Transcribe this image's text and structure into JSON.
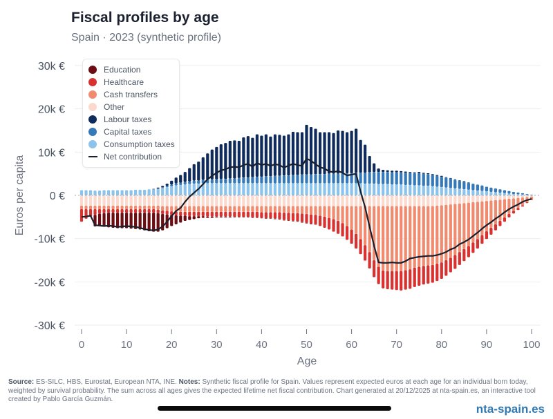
{
  "header": {
    "title": "Fiscal profiles by age",
    "subtitle": "Spain · 2023 (synthetic profile)"
  },
  "footer": {
    "source_label": "Source:",
    "source_text": " ES-SILC, HBS, Eurostat, European NTA, INE. ",
    "notes_label": "Notes:",
    "notes_text": " Synthetic fiscal profile for Spain. Values represent expected euros at each age for an individual born today, weighted by survival probability. The sum across all ages gives the expected lifetime net fiscal contribution. Chart generated at 20/12/2025 at nta-spain.es, an interactive tool created by Pablo García Guzmán.",
    "brand": "nta-spain.es"
  },
  "chart_data": {
    "type": "bar",
    "stacked": true,
    "title": "Fiscal profiles by age",
    "subtitle": "Spain · 2023 (synthetic profile)",
    "xlabel": "Age",
    "ylabel": "Euros per capita",
    "xlim": [
      0,
      100
    ],
    "ylim": [
      -30000,
      30000
    ],
    "xticks": [
      0,
      10,
      20,
      30,
      40,
      50,
      60,
      70,
      80,
      90,
      100
    ],
    "yticks": [
      {
        "value": 30000,
        "label": "30k €"
      },
      {
        "value": 20000,
        "label": "20k €"
      },
      {
        "value": 10000,
        "label": "10k €"
      },
      {
        "value": 0,
        "label": "0 €"
      },
      {
        "value": -10000,
        "label": "-10k €"
      },
      {
        "value": -20000,
        "label": "-20k €"
      },
      {
        "value": -30000,
        "label": "-30k €"
      }
    ],
    "grid": true,
    "legend_position": "top-left",
    "units": "euros (thousands in series values)",
    "colors": {
      "education": "#6b0d12",
      "healthcare": "#d7322f",
      "cash": "#f08b70",
      "other": "#fbd9cc",
      "labour": "#0f2b5b",
      "capital": "#3579b8",
      "consumption": "#8cc3ea",
      "net": "#1a1f2e"
    },
    "legend": [
      {
        "key": "education",
        "label": "Education",
        "kind": "dot"
      },
      {
        "key": "healthcare",
        "label": "Healthcare",
        "kind": "dot"
      },
      {
        "key": "cash",
        "label": "Cash transfers",
        "kind": "dot"
      },
      {
        "key": "other",
        "label": "Other",
        "kind": "dot"
      },
      {
        "key": "labour",
        "label": "Labour taxes",
        "kind": "dot"
      },
      {
        "key": "capital",
        "label": "Capital taxes",
        "kind": "dot"
      },
      {
        "key": "consumption",
        "label": "Consumption taxes",
        "kind": "dot"
      },
      {
        "key": "net",
        "label": "Net contribution",
        "kind": "line"
      }
    ],
    "ages_start": 0,
    "series_k": {
      "consumption": [
        1.2,
        1.2,
        1.2,
        1.1,
        1.1,
        1.2,
        1.2,
        1.2,
        1.2,
        1.2,
        1.2,
        1.2,
        1.3,
        1.3,
        1.3,
        1.4,
        1.4,
        1.5,
        1.7,
        1.9,
        2.1,
        2.3,
        2.4,
        2.5,
        2.6,
        2.7,
        2.7,
        2.8,
        2.8,
        2.8,
        2.8,
        2.8,
        2.8,
        2.8,
        2.8,
        2.8,
        2.8,
        2.8,
        2.8,
        2.8,
        2.8,
        2.8,
        2.8,
        2.8,
        2.8,
        2.8,
        2.8,
        2.8,
        2.8,
        2.8,
        2.8,
        2.8,
        2.8,
        2.8,
        2.8,
        2.8,
        2.8,
        2.8,
        2.8,
        2.8,
        2.8,
        2.8,
        2.8,
        2.7,
        2.7,
        2.7,
        2.6,
        2.6,
        2.6,
        2.5,
        2.5,
        2.5,
        2.4,
        2.4,
        2.3,
        2.3,
        2.2,
        2.2,
        2.1,
        2.0,
        1.9,
        1.8,
        1.7,
        1.6,
        1.5,
        1.4,
        1.3,
        1.2,
        1.1,
        1.0,
        0.9,
        0.8,
        0.7,
        0.6,
        0.5,
        0.4,
        0.3,
        0.25,
        0.2,
        0.1,
        0.05
      ],
      "capital": [
        0,
        0,
        0,
        0,
        0,
        0,
        0,
        0,
        0,
        0,
        0,
        0,
        0,
        0,
        0,
        0,
        0,
        0.1,
        0.2,
        0.3,
        0.4,
        0.5,
        0.5,
        0.6,
        0.6,
        0.7,
        0.7,
        0.8,
        0.8,
        0.9,
        0.9,
        1.0,
        1.0,
        1.1,
        1.1,
        1.2,
        1.3,
        1.3,
        1.4,
        1.5,
        1.5,
        1.6,
        1.6,
        1.7,
        1.7,
        1.8,
        1.8,
        1.9,
        1.9,
        2.0,
        2.0,
        2.0,
        2.1,
        2.1,
        2.1,
        2.2,
        2.2,
        2.2,
        2.3,
        2.3,
        2.3,
        2.4,
        2.4,
        2.5,
        2.6,
        2.7,
        2.8,
        2.8,
        2.8,
        2.8,
        2.8,
        2.8,
        2.8,
        2.8,
        2.8,
        2.8,
        2.8,
        2.7,
        2.6,
        2.5,
        2.4,
        2.3,
        2.2,
        2.0,
        1.9,
        1.8,
        1.6,
        1.5,
        1.4,
        1.3,
        1.1,
        1.0,
        0.9,
        0.8,
        0.7,
        0.6,
        0.5,
        0.4,
        0.3,
        0.2,
        0.1
      ],
      "labour": [
        0,
        0,
        0,
        0,
        0,
        0,
        0,
        0,
        0,
        0,
        0,
        0,
        0,
        0,
        0,
        0,
        0.1,
        0.2,
        0.3,
        0.5,
        0.9,
        1.3,
        1.8,
        2.3,
        3.1,
        3.8,
        4.4,
        5.2,
        6.1,
        6.9,
        7.5,
        8.0,
        8.3,
        8.7,
        8.8,
        8.6,
        9.3,
        9.6,
        9.1,
        9.8,
        9.5,
        9.7,
        9.2,
        9.6,
        9.5,
        9.2,
        9.5,
        10.0,
        9.9,
        9.8,
        11.5,
        11.0,
        10.5,
        9.7,
        9.7,
        9.6,
        9.4,
        10.0,
        9.8,
        9.5,
        9.8,
        10.2,
        7.6,
        6.5,
        3.8,
        2.0,
        0.8,
        0.5,
        0.4,
        0.4,
        0.4,
        0.3,
        0.3,
        0.2,
        0.2,
        0.3,
        0.2,
        0.2,
        0.2,
        0.2,
        0.2,
        0.1,
        0.1,
        0.1,
        0.1,
        0.1,
        0.1,
        0,
        0,
        0,
        0,
        0,
        0,
        0,
        0,
        0,
        0,
        0,
        0,
        0,
        0
      ],
      "other": [
        -2.4,
        -2.4,
        -2.4,
        -2.4,
        -2.4,
        -2.4,
        -2.4,
        -2.4,
        -2.4,
        -2.4,
        -2.4,
        -2.4,
        -2.4,
        -2.4,
        -2.4,
        -2.4,
        -2.4,
        -2.4,
        -2.5,
        -2.5,
        -2.5,
        -2.5,
        -2.5,
        -2.5,
        -2.5,
        -2.5,
        -2.5,
        -2.5,
        -2.5,
        -2.5,
        -2.5,
        -2.5,
        -2.5,
        -2.5,
        -2.5,
        -2.5,
        -2.5,
        -2.5,
        -2.5,
        -2.5,
        -2.5,
        -2.5,
        -2.5,
        -2.5,
        -2.5,
        -2.5,
        -2.5,
        -2.5,
        -2.5,
        -2.5,
        -2.5,
        -2.5,
        -2.5,
        -2.5,
        -2.5,
        -2.5,
        -2.5,
        -2.5,
        -2.5,
        -2.5,
        -2.5,
        -2.5,
        -2.5,
        -2.5,
        -2.5,
        -2.5,
        -2.5,
        -2.5,
        -2.5,
        -2.5,
        -2.5,
        -2.5,
        -2.5,
        -2.5,
        -2.5,
        -2.5,
        -2.5,
        -2.5,
        -2.5,
        -2.4,
        -2.3,
        -2.2,
        -2.1,
        -2.0,
        -1.9,
        -1.8,
        -1.7,
        -1.6,
        -1.5,
        -1.4,
        -1.3,
        -1.2,
        -1.1,
        -1.0,
        -0.9,
        -0.8,
        -0.7,
        -0.6,
        -0.5,
        -0.4,
        -0.3
      ],
      "cash": [
        -0.8,
        -0.8,
        -0.8,
        -0.8,
        -0.8,
        -0.8,
        -0.8,
        -0.8,
        -0.8,
        -0.8,
        -0.8,
        -0.8,
        -0.8,
        -0.8,
        -0.8,
        -0.8,
        -0.8,
        -0.9,
        -1.0,
        -1.1,
        -1.2,
        -1.2,
        -1.3,
        -1.3,
        -1.3,
        -1.3,
        -1.3,
        -1.3,
        -1.3,
        -1.3,
        -1.3,
        -1.3,
        -1.3,
        -1.3,
        -1.3,
        -1.3,
        -1.3,
        -1.3,
        -1.3,
        -1.3,
        -1.4,
        -1.4,
        -1.4,
        -1.4,
        -1.4,
        -1.5,
        -1.5,
        -1.6,
        -1.6,
        -1.7,
        -1.8,
        -1.9,
        -2.0,
        -2.2,
        -2.4,
        -2.7,
        -3.0,
        -3.4,
        -3.9,
        -4.6,
        -5.4,
        -6.4,
        -7.6,
        -9.0,
        -10.6,
        -12.5,
        -14.0,
        -14.9,
        -15.0,
        -15.0,
        -15.0,
        -15.0,
        -14.8,
        -14.6,
        -14.2,
        -14.0,
        -13.8,
        -13.7,
        -13.6,
        -13.4,
        -13.2,
        -12.8,
        -12.3,
        -11.8,
        -11.2,
        -10.6,
        -10.0,
        -9.3,
        -8.6,
        -7.8,
        -7.0,
        -6.3,
        -5.6,
        -4.9,
        -4.2,
        -3.5,
        -2.9,
        -2.3,
        -1.8,
        -1.2,
        -0.7
      ],
      "healthcare": [
        -2.9,
        -2.2,
        -1.7,
        -1.3,
        -1.0,
        -0.9,
        -0.8,
        -0.8,
        -0.8,
        -0.8,
        -0.8,
        -0.8,
        -0.8,
        -0.8,
        -0.8,
        -0.8,
        -0.8,
        -0.8,
        -0.8,
        -0.8,
        -0.8,
        -0.9,
        -0.9,
        -0.9,
        -1.0,
        -1.0,
        -1.0,
        -1.0,
        -1.1,
        -1.1,
        -1.1,
        -1.1,
        -1.1,
        -1.1,
        -1.2,
        -1.2,
        -1.2,
        -1.2,
        -1.3,
        -1.3,
        -1.3,
        -1.4,
        -1.4,
        -1.5,
        -1.6,
        -1.7,
        -1.8,
        -1.8,
        -1.9,
        -2.0,
        -2.1,
        -2.2,
        -2.3,
        -2.4,
        -2.6,
        -2.7,
        -2.9,
        -3.0,
        -3.1,
        -3.2,
        -3.3,
        -3.4,
        -3.5,
        -3.6,
        -3.8,
        -3.9,
        -4.0,
        -4.1,
        -4.2,
        -4.3,
        -4.4,
        -4.5,
        -4.5,
        -4.5,
        -4.5,
        -4.4,
        -4.3,
        -4.2,
        -4.1,
        -4.0,
        -3.8,
        -3.6,
        -3.4,
        -3.2,
        -3.0,
        -2.8,
        -2.6,
        -2.4,
        -2.2,
        -2.0,
        -1.8,
        -1.6,
        -1.4,
        -1.2,
        -1.0,
        -0.8,
        -0.6,
        -0.5,
        -0.3,
        -0.2,
        -0.1
      ],
      "education": [
        0,
        0,
        0,
        -2.7,
        -2.8,
        -3.1,
        -3.4,
        -3.5,
        -3.6,
        -3.6,
        -3.6,
        -3.7,
        -3.8,
        -3.9,
        -4.1,
        -4.3,
        -4.4,
        -4.3,
        -3.8,
        -3.2,
        -2.6,
        -2.1,
        -1.6,
        -1.2,
        -0.9,
        -0.7,
        -0.5,
        -0.4,
        -0.3,
        -0.3,
        -0.2,
        -0.2,
        -0.2,
        -0.2,
        -0.1,
        -0.1,
        -0.1,
        -0.1,
        -0.1,
        -0.1,
        -0.1,
        -0.1,
        -0.1,
        -0.1,
        -0.1,
        -0.1,
        -0.1,
        -0.1,
        -0.1,
        -0.1,
        -0.1,
        -0.1,
        0,
        0,
        0,
        0,
        0,
        0,
        0,
        0,
        0,
        0,
        0,
        0,
        0,
        0,
        0,
        0,
        0,
        0,
        0,
        0,
        0,
        0,
        0,
        0,
        0,
        0,
        0,
        0,
        0,
        0,
        0,
        0,
        0,
        0,
        0,
        0,
        0,
        0,
        0,
        0,
        0,
        0,
        0,
        0,
        0,
        0,
        0,
        0,
        0
      ],
      "net": [
        -5.0,
        -4.9,
        -4.7,
        -6.9,
        -7.0,
        -7.1,
        -7.0,
        -7.1,
        -7.3,
        -7.2,
        -7.1,
        -7.2,
        -7.3,
        -7.5,
        -7.8,
        -8.0,
        -8.1,
        -7.9,
        -7.2,
        -6.1,
        -4.8,
        -3.6,
        -2.9,
        -1.5,
        -0.3,
        0.6,
        1.5,
        2.6,
        3.7,
        4.5,
        5.2,
        5.8,
        6.0,
        6.5,
        6.6,
        6.5,
        7.0,
        7.3,
        6.6,
        7.5,
        7.0,
        7.3,
        6.8,
        7.2,
        7.0,
        6.4,
        6.9,
        7.3,
        7.0,
        6.8,
        8.5,
        8.0,
        7.2,
        6.5,
        6.2,
        5.5,
        5.4,
        5.6,
        5.2,
        4.6,
        4.8,
        5.0,
        0.9,
        -2.7,
        -7.2,
        -11.7,
        -15.5,
        -15.6,
        -15.6,
        -15.5,
        -15.6,
        -15.6,
        -15.2,
        -14.6,
        -14.4,
        -14.2,
        -14.1,
        -14.0,
        -14.0,
        -13.8,
        -13.5,
        -13.1,
        -12.5,
        -12.1,
        -11.3,
        -10.8,
        -10.2,
        -9.4,
        -8.6,
        -7.7,
        -6.9,
        -6.2,
        -5.4,
        -4.7,
        -3.9,
        -3.2,
        -2.6,
        -2.1,
        -1.5,
        -1.1,
        -0.8
      ]
    }
  }
}
